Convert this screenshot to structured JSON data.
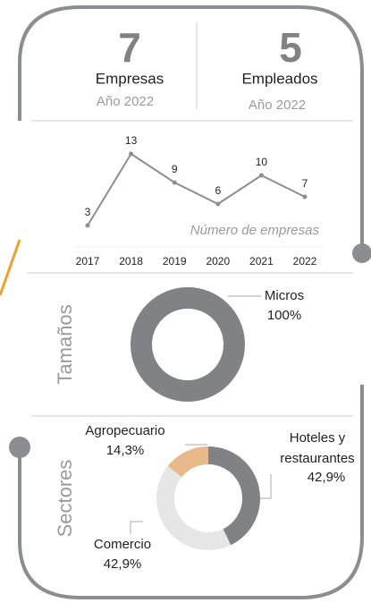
{
  "kpis": [
    {
      "value": "7",
      "label": "Empresas",
      "sub": "Año 2022"
    },
    {
      "value": "5",
      "label": "Empleados",
      "sub": "Año 2022"
    }
  ],
  "chart_data": [
    {
      "type": "line",
      "annotation": "Número de empresas",
      "categories": [
        "2017",
        "2018",
        "2019",
        "2020",
        "2021",
        "2022"
      ],
      "values": [
        3,
        13,
        9,
        6,
        10,
        7
      ],
      "color": "#8a8d91",
      "ylim": [
        0,
        13
      ]
    },
    {
      "type": "pie",
      "title": "Tamaños",
      "categories": [
        "Micros"
      ],
      "values": [
        100
      ],
      "value_labels": [
        "100%"
      ],
      "colors": [
        "#808285"
      ]
    },
    {
      "type": "pie",
      "title": "Sectores",
      "categories": [
        "Hoteles y restaurantes",
        "Comercio",
        "Agropecuario"
      ],
      "values": [
        42.9,
        42.9,
        14.3
      ],
      "value_labels": [
        "42,9%",
        "42,9%",
        "14,3%"
      ],
      "colors": [
        "#808285",
        "#e6e6e6",
        "#e8b98a"
      ]
    }
  ]
}
